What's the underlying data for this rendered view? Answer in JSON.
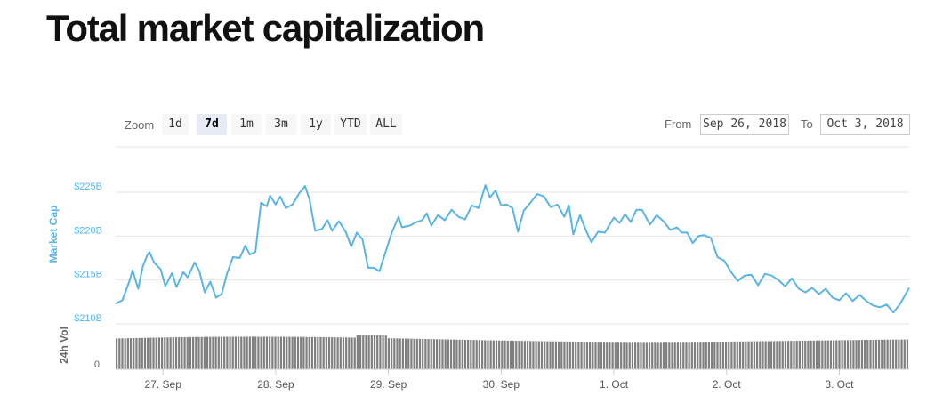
{
  "title": "Total market capitalization",
  "range_selector": {
    "zoom_label": "Zoom",
    "buttons": [
      {
        "label": "1d",
        "active": false
      },
      {
        "label": "7d",
        "active": true
      },
      {
        "label": "1m",
        "active": false
      },
      {
        "label": "3m",
        "active": false
      },
      {
        "label": "1y",
        "active": false
      },
      {
        "label": "YTD",
        "active": false
      },
      {
        "label": "ALL",
        "active": false
      }
    ],
    "from_label": "From",
    "from_value": "Sep 26, 2018",
    "to_label": "To",
    "to_value": "Oct 3, 2018"
  },
  "colors": {
    "line": "#5ab5e6",
    "axis_label": "#5ab5e6",
    "volume": "#7f7f7f",
    "grid": "#e6e6e6"
  },
  "chart_data": {
    "type": "line",
    "title": "",
    "ylabel": "Market Cap",
    "y2label": "24h Vol",
    "y_ticks": [
      "$210B",
      "$215B",
      "$220B",
      "$225B"
    ],
    "ylim": [
      210,
      225
    ],
    "y_unit": "B",
    "vol_tick": "0",
    "x_ticks": [
      "27. Sep",
      "28. Sep",
      "29. Sep",
      "30. Sep",
      "1. Oct",
      "2. Oct",
      "3. Oct"
    ],
    "xlim": [
      -0.42,
      6.62
    ],
    "series": [
      {
        "type": "line",
        "x": [
          -0.42,
          -0.36,
          -0.3,
          -0.27,
          -0.22,
          -0.18,
          -0.14,
          -0.12,
          -0.08,
          -0.02,
          0.02,
          0.08,
          0.12,
          0.18,
          0.22,
          0.28,
          0.32,
          0.37,
          0.42,
          0.47,
          0.52,
          0.57,
          0.62,
          0.68,
          0.73,
          0.77,
          0.82,
          0.87,
          0.92,
          0.95,
          1.0,
          1.04,
          1.09,
          1.15,
          1.21,
          1.26,
          1.3,
          1.35,
          1.41,
          1.46,
          1.5,
          1.56,
          1.62,
          1.67,
          1.72,
          1.77,
          1.82,
          1.87,
          1.92,
          1.97,
          2.03,
          2.09,
          2.12,
          2.19,
          2.25,
          2.3,
          2.34,
          2.38,
          2.44,
          2.5,
          2.56,
          2.62,
          2.68,
          2.74,
          2.8,
          2.86,
          2.9,
          2.95,
          3.0,
          3.05,
          3.1,
          3.15,
          3.2,
          3.26,
          3.32,
          3.38,
          3.44,
          3.5,
          3.56,
          3.6,
          3.64,
          3.7,
          3.75,
          3.8,
          3.86,
          3.92,
          4.0,
          4.05,
          4.1,
          4.15,
          4.2,
          4.25,
          4.32,
          4.38,
          4.44,
          4.5,
          4.56,
          4.6,
          4.65,
          4.7,
          4.75,
          4.8,
          4.86,
          4.92,
          4.98,
          5.04,
          5.1,
          5.16,
          5.22,
          5.28,
          5.34,
          5.4,
          5.46,
          5.52,
          5.58,
          5.64,
          5.7,
          5.76,
          5.82,
          5.88,
          5.94,
          6.0,
          6.06,
          6.12,
          6.18,
          6.24,
          6.3,
          6.36,
          6.42,
          6.48,
          6.54,
          6.62
        ],
        "y": [
          212.3,
          212.7,
          214.8,
          216.1,
          214.0,
          216.5,
          217.8,
          218.2,
          217.0,
          216.2,
          214.3,
          215.8,
          214.2,
          215.9,
          215.3,
          217.0,
          216.1,
          213.6,
          214.8,
          213.0,
          213.4,
          215.8,
          217.6,
          217.5,
          218.9,
          217.9,
          218.2,
          223.8,
          223.4,
          224.6,
          223.6,
          224.5,
          223.2,
          223.6,
          224.9,
          225.7,
          224.2,
          220.6,
          220.8,
          221.8,
          220.6,
          221.7,
          220.5,
          218.8,
          220.4,
          219.6,
          216.4,
          216.4,
          216.0,
          218.0,
          220.4,
          222.2,
          221.0,
          221.2,
          221.6,
          221.8,
          222.6,
          221.2,
          222.4,
          221.8,
          223.0,
          222.2,
          221.9,
          223.5,
          223.2,
          225.8,
          224.4,
          225.2,
          223.5,
          223.6,
          223.2,
          220.5,
          222.9,
          223.8,
          224.8,
          224.5,
          223.3,
          223.6,
          222.2,
          223.5,
          220.2,
          222.4,
          220.7,
          219.3,
          220.5,
          220.4,
          222.1,
          221.5,
          222.5,
          221.6,
          223.0,
          223.0,
          221.3,
          222.4,
          221.7,
          220.7,
          221.0,
          220.4,
          220.4,
          219.2,
          220.0,
          220.1,
          219.8,
          217.6,
          217.2,
          215.9,
          214.9,
          215.5,
          215.6,
          214.4,
          215.7,
          215.5,
          215.0,
          214.3,
          215.2,
          214.0,
          213.6,
          214.1,
          213.4,
          214.0,
          213.0,
          212.7,
          213.5,
          212.6,
          213.3,
          212.6,
          212.1,
          211.9,
          212.2,
          211.3,
          212.3,
          214.1
        ]
      }
    ],
    "volume": {
      "min": 0,
      "max": 1,
      "values_note": ""
    }
  }
}
